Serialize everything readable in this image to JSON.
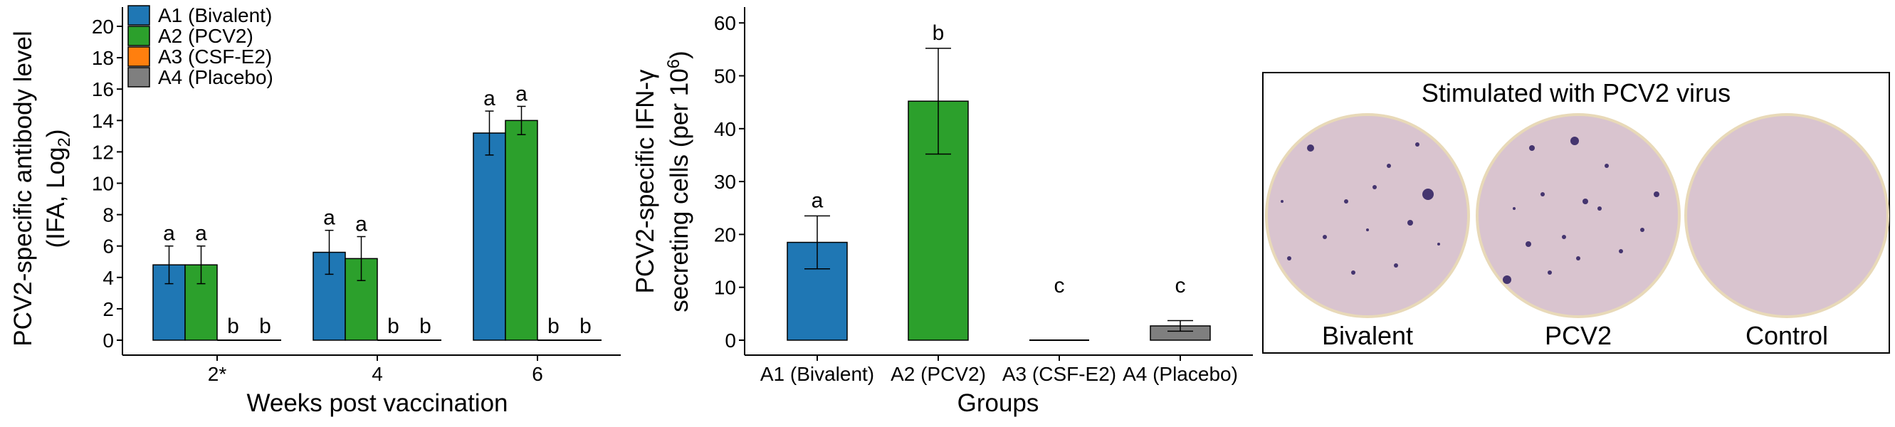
{
  "colors": {
    "A1": "#1f77b4",
    "A2": "#2ca02c",
    "A3": "#ff7f0e",
    "A4": "#7f7f7f",
    "well_bg": "#d9c4cf",
    "spot": "#2a1c5e"
  },
  "chart_data": [
    {
      "type": "bar",
      "title": "",
      "xlabel": "Weeks post vaccination",
      "ylabel_line1": "PCV2-specific antibody level",
      "ylabel_line2": "(IFA, Log",
      "ylabel_sub": "2",
      "ylabel_close": ")",
      "categories": [
        "2*",
        "4",
        "6"
      ],
      "ylim": [
        0,
        21
      ],
      "yticks": [
        0,
        2,
        4,
        6,
        8,
        10,
        12,
        14,
        16,
        18,
        20
      ],
      "series": [
        {
          "name": "A1 (Bivalent)",
          "color": "#1f77b4",
          "values": [
            4.8,
            5.6,
            13.2
          ],
          "err": [
            1.2,
            1.4,
            1.4
          ],
          "letters": [
            "a",
            "a",
            "a"
          ]
        },
        {
          "name": "A2 (PCV2)",
          "color": "#2ca02c",
          "values": [
            4.8,
            5.2,
            14.0
          ],
          "err": [
            1.2,
            1.4,
            0.9
          ],
          "letters": [
            "a",
            "a",
            "a"
          ]
        },
        {
          "name": "A3 (CSF-E2)",
          "color": "#ff7f0e",
          "values": [
            0,
            0,
            0
          ],
          "err": [
            0,
            0,
            0
          ],
          "letters": [
            "b",
            "b",
            "b"
          ]
        },
        {
          "name": "A4 (Placebo)",
          "color": "#7f7f7f",
          "values": [
            0,
            0,
            0
          ],
          "err": [
            0,
            0,
            0
          ],
          "letters": [
            "b",
            "b",
            "b"
          ]
        }
      ],
      "legend": "top-left"
    },
    {
      "type": "bar",
      "title": "",
      "xlabel": "Groups",
      "ylabel_line1": "PCV2-specific IFN-γ",
      "ylabel_line2": "secreting cells (per 10",
      "ylabel_sup": "6",
      "ylabel_close": ")",
      "categories": [
        "A1 (Bivalent)",
        "A2 (PCV2)",
        "A3 (CSF-E2)",
        "A4 (Placebo)"
      ],
      "ylim": [
        0,
        62
      ],
      "yticks": [
        0,
        10,
        20,
        30,
        40,
        50,
        60
      ],
      "values": [
        18.5,
        45.2,
        0,
        2.7
      ],
      "err": [
        5.0,
        10.0,
        0,
        1.0
      ],
      "letters": [
        "a",
        "b",
        "c",
        "c"
      ],
      "colors": [
        "#1f77b4",
        "#2ca02c",
        "#ff7f0e",
        "#7f7f7f"
      ]
    }
  ],
  "elispot": {
    "title": "Stimulated with PCV2 virus",
    "wells": [
      {
        "label": "Bivalent"
      },
      {
        "label": "PCV2"
      },
      {
        "label": "Control"
      }
    ]
  }
}
